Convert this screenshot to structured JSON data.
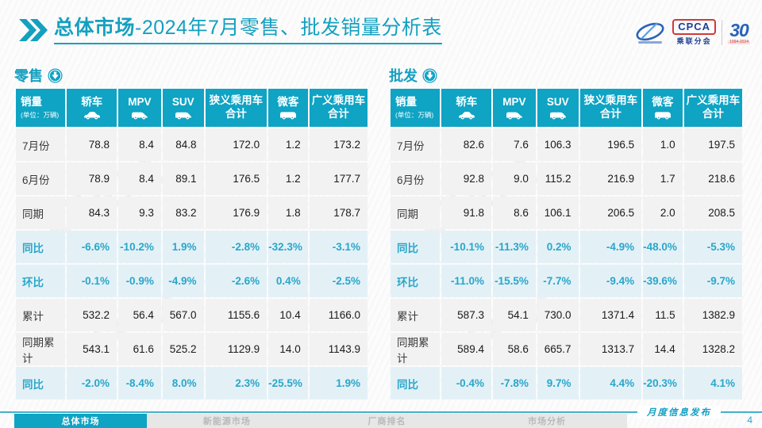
{
  "title": {
    "section": "总体市场",
    "rest": "-2024年7月零售、批发销量分析表"
  },
  "logo": {
    "name": "CPCA",
    "subtitle": "乘联分会",
    "anniversary": "30",
    "years": "1994-2024"
  },
  "watermark": "CPCA",
  "colors": {
    "primary": "#0fa3c4",
    "title_text": "#14a0c0",
    "percent_text": "#2aa6c9",
    "value_row_bg": "#f2f2f2",
    "percent_row_bg": "#e3f1f7",
    "inactive_tab_bg": "#e7e7e7",
    "inactive_tab_text": "#b9b9b9",
    "logo_blue": "#2a62b8",
    "logo_red": "#d03a3a"
  },
  "tables": [
    {
      "label": "零售",
      "first_col_title": "销量",
      "unit_note": "(单位：万辆)",
      "columns": [
        {
          "label": "轿车",
          "icon": "sedan-icon"
        },
        {
          "label": "MPV",
          "icon": "mpv-icon"
        },
        {
          "label": "SUV",
          "icon": "suv-icon"
        },
        {
          "label": "狭义乘用车合计",
          "lines": [
            "狭义乘用车",
            "合计"
          ]
        },
        {
          "label": "微客",
          "icon": "minibus-icon"
        },
        {
          "label": "广义乘用车合计",
          "lines": [
            "广义乘用车",
            "合计"
          ]
        }
      ],
      "rows": [
        {
          "label": "7月份",
          "type": "value",
          "values": [
            "78.8",
            "8.4",
            "84.8",
            "172.0",
            "1.2",
            "173.2"
          ]
        },
        {
          "label": "6月份",
          "type": "value",
          "values": [
            "78.9",
            "8.4",
            "89.1",
            "176.5",
            "1.2",
            "177.7"
          ]
        },
        {
          "label": "同期",
          "type": "value",
          "values": [
            "84.3",
            "9.3",
            "83.2",
            "176.9",
            "1.8",
            "178.7"
          ]
        },
        {
          "label": "同比",
          "type": "percent",
          "values": [
            "-6.6%",
            "-10.2%",
            "1.9%",
            "-2.8%",
            "-32.3%",
            "-3.1%"
          ]
        },
        {
          "label": "环比",
          "type": "percent",
          "values": [
            "-0.1%",
            "-0.9%",
            "-4.9%",
            "-2.6%",
            "0.4%",
            "-2.5%"
          ]
        },
        {
          "label": "累计",
          "type": "value",
          "values": [
            "532.2",
            "56.4",
            "567.0",
            "1155.6",
            "10.4",
            "1166.0"
          ]
        },
        {
          "label": "同期累计",
          "type": "value",
          "values": [
            "543.1",
            "61.6",
            "525.2",
            "1129.9",
            "14.0",
            "1143.9"
          ]
        },
        {
          "label": "同比",
          "type": "percent",
          "values": [
            "-2.0%",
            "-8.4%",
            "8.0%",
            "2.3%",
            "-25.5%",
            "1.9%"
          ]
        }
      ]
    },
    {
      "label": "批发",
      "first_col_title": "销量",
      "unit_note": "(单位：万辆)",
      "columns": [
        {
          "label": "轿车",
          "icon": "sedan-icon"
        },
        {
          "label": "MPV",
          "icon": "mpv-icon"
        },
        {
          "label": "SUV",
          "icon": "suv-icon"
        },
        {
          "label": "狭义乘用车合计",
          "lines": [
            "狭义乘用车",
            "合计"
          ]
        },
        {
          "label": "微客",
          "icon": "minibus-icon"
        },
        {
          "label": "广义乘用车合计",
          "lines": [
            "广义乘用车",
            "合计"
          ]
        }
      ],
      "rows": [
        {
          "label": "7月份",
          "type": "value",
          "values": [
            "82.6",
            "7.6",
            "106.3",
            "196.5",
            "1.0",
            "197.5"
          ]
        },
        {
          "label": "6月份",
          "type": "value",
          "values": [
            "92.8",
            "9.0",
            "115.2",
            "216.9",
            "1.7",
            "218.6"
          ]
        },
        {
          "label": "同期",
          "type": "value",
          "values": [
            "91.8",
            "8.6",
            "106.1",
            "206.5",
            "2.0",
            "208.5"
          ]
        },
        {
          "label": "同比",
          "type": "percent",
          "values": [
            "-10.1%",
            "-11.3%",
            "0.2%",
            "-4.9%",
            "-48.0%",
            "-5.3%"
          ]
        },
        {
          "label": "环比",
          "type": "percent",
          "values": [
            "-11.0%",
            "-15.5%",
            "-7.7%",
            "-9.4%",
            "-39.6%",
            "-9.7%"
          ]
        },
        {
          "label": "累计",
          "type": "value",
          "values": [
            "587.3",
            "54.1",
            "730.0",
            "1371.4",
            "11.5",
            "1382.9"
          ]
        },
        {
          "label": "同期累计",
          "type": "value",
          "values": [
            "589.4",
            "58.6",
            "665.7",
            "1313.7",
            "14.4",
            "1328.2"
          ]
        },
        {
          "label": "同比",
          "type": "percent",
          "values": [
            "-0.4%",
            "-7.8%",
            "9.7%",
            "4.4%",
            "-20.3%",
            "4.1%"
          ]
        }
      ]
    }
  ],
  "footer": {
    "tabs": [
      {
        "label": "总体市场",
        "active": true
      },
      {
        "label": "新能源市场",
        "active": false
      },
      {
        "label": "厂商排名",
        "active": false
      },
      {
        "label": "市场分析",
        "active": false
      }
    ],
    "publication": "月度信息发布",
    "page": "4"
  }
}
